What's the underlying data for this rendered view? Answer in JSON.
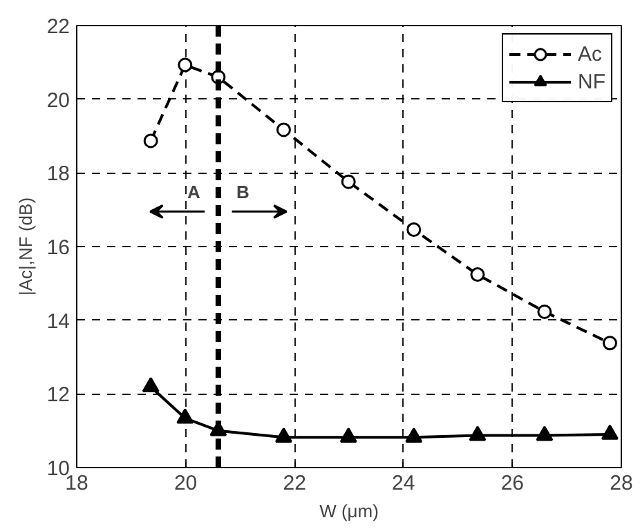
{
  "chart_data": {
    "type": "line",
    "xlabel": "W (μm)",
    "ylabel": "|Ac|,NF (dB)",
    "x": [
      19.36,
      19.99,
      20.6,
      21.8,
      22.99,
      24.19,
      25.36,
      26.59,
      27.79
    ],
    "series": [
      {
        "name": "Ac",
        "color": "#000000",
        "marker": "circle",
        "line_style": "dashed",
        "values": [
          18.87,
          20.93,
          20.6,
          19.17,
          17.76,
          16.46,
          15.24,
          14.23,
          13.38
        ]
      },
      {
        "name": "NF",
        "color": "#000000",
        "marker": "triangle",
        "line_style": "solid",
        "values": [
          12.19,
          11.34,
          11.0,
          10.82,
          10.82,
          10.82,
          10.87,
          10.87,
          10.9
        ]
      }
    ],
    "xlim": [
      18,
      28
    ],
    "xticks": [
      18,
      20,
      22,
      24,
      26,
      28
    ],
    "ylim": [
      10,
      22
    ],
    "yticks": [
      10,
      12,
      14,
      16,
      18,
      20,
      22
    ],
    "ref_lines": [
      {
        "axis": "x",
        "value": 20.6,
        "color": "#000000",
        "line_style": "dashed"
      }
    ],
    "annotations": [
      "A",
      "B"
    ],
    "grid": true,
    "legend": "top right"
  }
}
